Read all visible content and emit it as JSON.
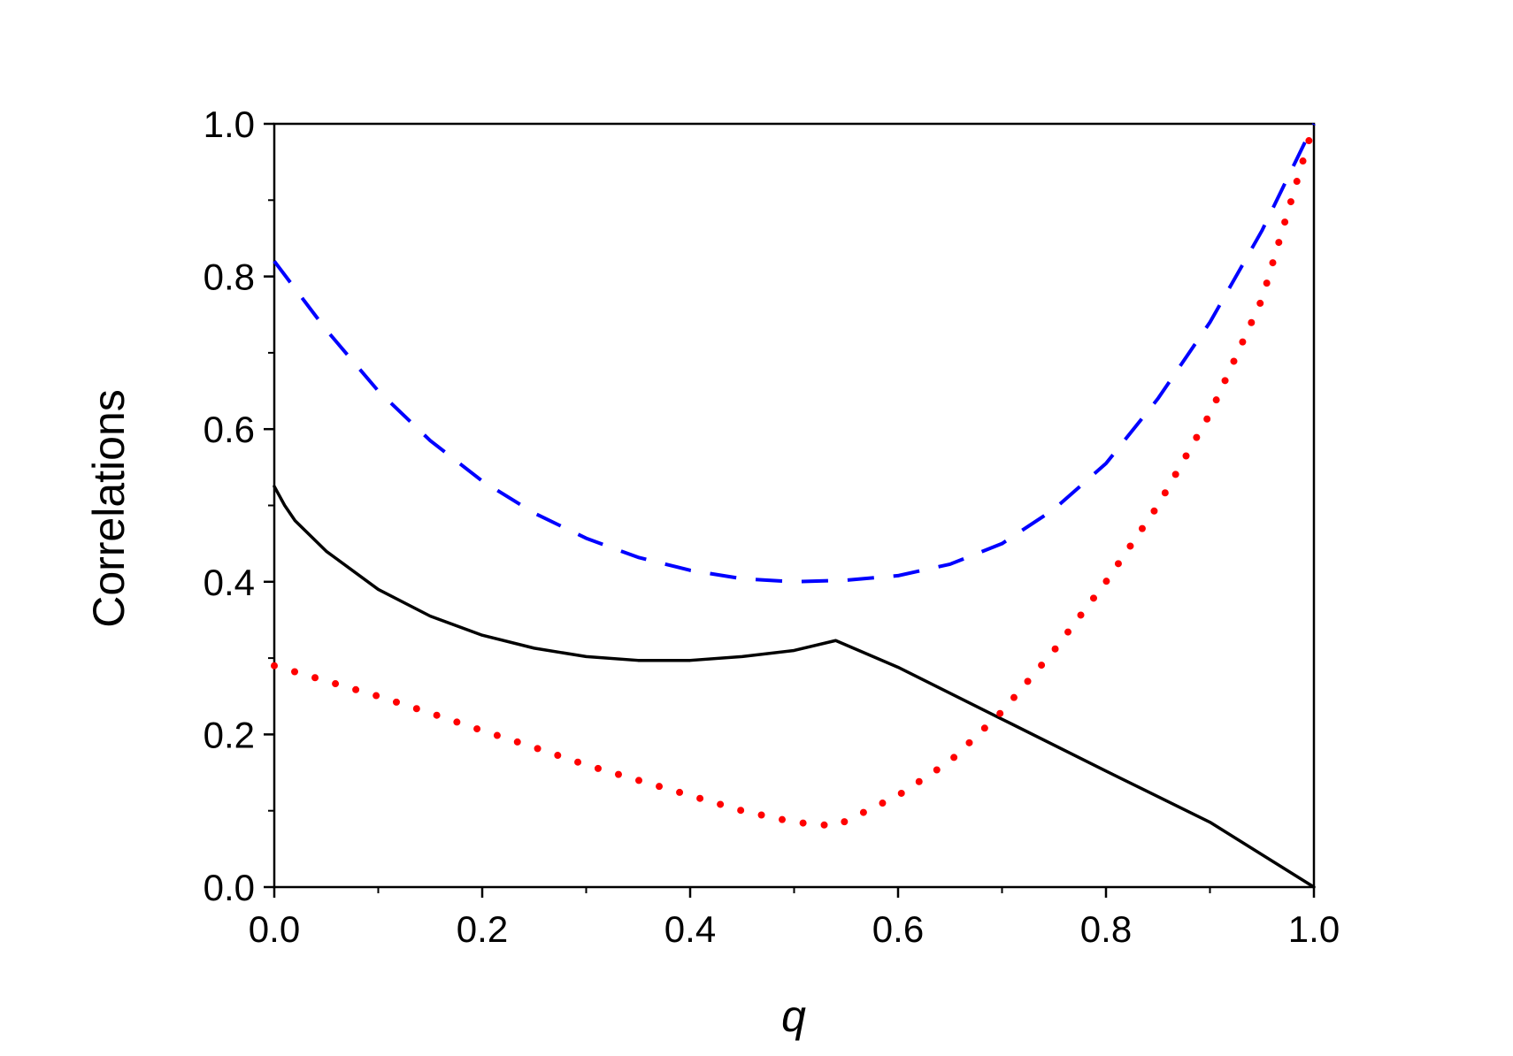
{
  "chart_data": {
    "type": "line",
    "xlabel": "q",
    "ylabel": "Correlations",
    "xlim": [
      0.0,
      1.0
    ],
    "ylim": [
      0.0,
      1.0
    ],
    "xticks": [
      "0.0",
      "0.2",
      "0.4",
      "0.6",
      "0.8",
      "1.0"
    ],
    "yticks": [
      "0.0",
      "0.2",
      "0.4",
      "0.6",
      "0.8",
      "1.0"
    ],
    "grid": false,
    "series": [
      {
        "style": "solid",
        "color": "#000000",
        "x": [
          0.0,
          0.01,
          0.02,
          0.05,
          0.1,
          0.15,
          0.2,
          0.25,
          0.3,
          0.35,
          0.4,
          0.45,
          0.5,
          0.54,
          0.6,
          0.7,
          0.8,
          0.9,
          1.0
        ],
        "y": [
          0.525,
          0.5,
          0.48,
          0.44,
          0.39,
          0.355,
          0.33,
          0.313,
          0.302,
          0.297,
          0.297,
          0.302,
          0.31,
          0.323,
          0.288,
          0.22,
          0.152,
          0.085,
          0.0
        ]
      },
      {
        "style": "dashed",
        "color": "#0000ff",
        "x": [
          0.0,
          0.05,
          0.1,
          0.15,
          0.2,
          0.25,
          0.3,
          0.35,
          0.4,
          0.45,
          0.5,
          0.55,
          0.6,
          0.65,
          0.7,
          0.75,
          0.8,
          0.85,
          0.9,
          0.95,
          1.0
        ],
        "y": [
          0.82,
          0.73,
          0.65,
          0.585,
          0.532,
          0.49,
          0.457,
          0.432,
          0.415,
          0.404,
          0.4,
          0.402,
          0.408,
          0.423,
          0.45,
          0.495,
          0.555,
          0.64,
          0.74,
          0.86,
          1.0
        ]
      },
      {
        "style": "dotted",
        "color": "#ff0000",
        "x": [
          0.0,
          0.05,
          0.1,
          0.15,
          0.2,
          0.25,
          0.3,
          0.35,
          0.4,
          0.45,
          0.5,
          0.54,
          0.6,
          0.65,
          0.7,
          0.75,
          0.8,
          0.85,
          0.9,
          0.95,
          1.0
        ],
        "y": [
          0.29,
          0.27,
          0.25,
          0.228,
          0.205,
          0.183,
          0.16,
          0.14,
          0.12,
          0.1,
          0.085,
          0.08,
          0.12,
          0.165,
          0.23,
          0.31,
          0.4,
          0.5,
          0.62,
          0.77,
          1.0
        ]
      }
    ]
  }
}
